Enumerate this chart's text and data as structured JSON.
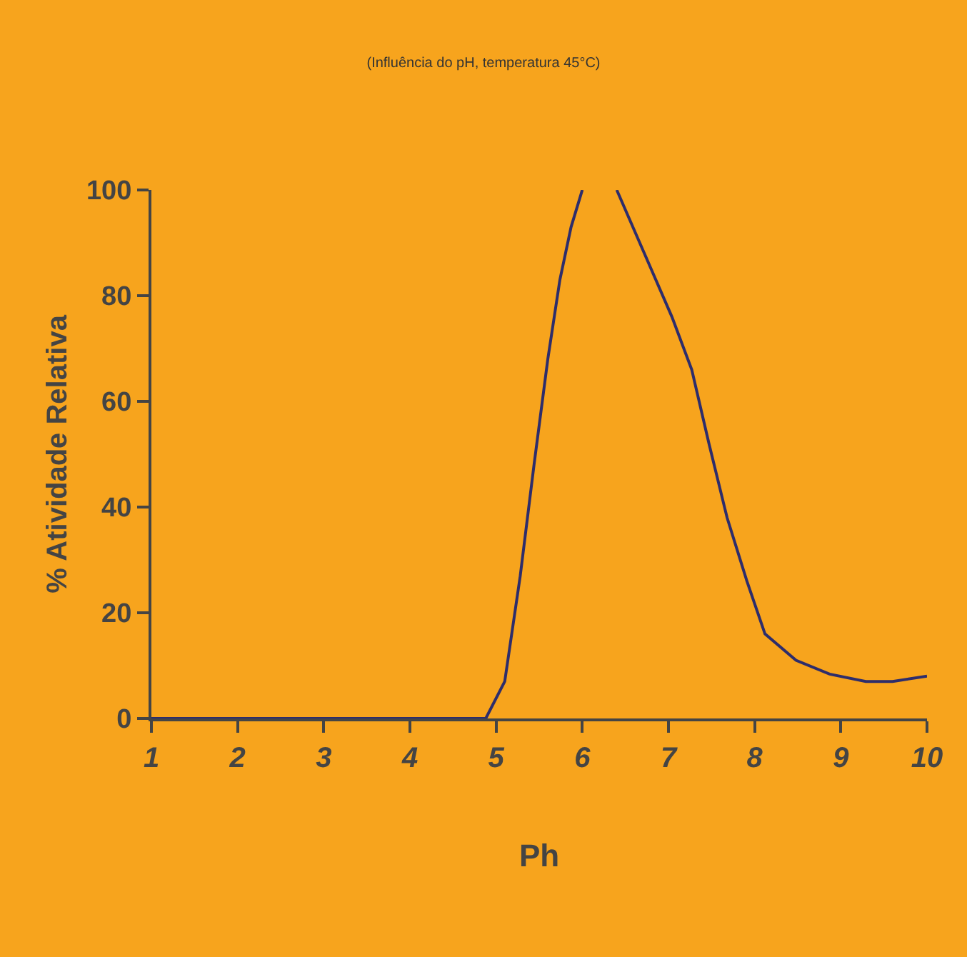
{
  "chart_data": {
    "type": "line",
    "title": "(Influência do pH, temperatura 45°C)",
    "xlabel": "Ph",
    "ylabel": "% Atividade Relativa",
    "x": [
      1,
      2,
      3,
      4,
      4.88,
      5.1,
      5.28,
      5.44,
      5.6,
      5.74,
      5.87,
      6.0,
      6.2,
      6.4,
      6.72,
      7.04,
      7.27,
      7.47,
      7.68,
      7.91,
      8.12,
      8.48,
      8.87,
      9.29,
      9.6,
      10
    ],
    "series": [
      {
        "color": "#2e2d6b",
        "values": [
          0,
          0,
          0,
          0,
          0,
          7,
          27,
          48,
          68,
          83,
          93,
          100,
          null,
          100,
          88,
          76,
          66,
          52,
          38,
          26,
          16,
          11,
          8.4,
          7,
          7,
          8
        ]
      }
    ],
    "xlim": [
      1,
      10
    ],
    "xticks": [
      1,
      2,
      3,
      4,
      5,
      6,
      7,
      8,
      9,
      10
    ],
    "ylim": [
      0,
      100
    ],
    "yticks": [
      0,
      20,
      40,
      60,
      80,
      100
    ],
    "marker": "none",
    "line_style": "solid"
  }
}
